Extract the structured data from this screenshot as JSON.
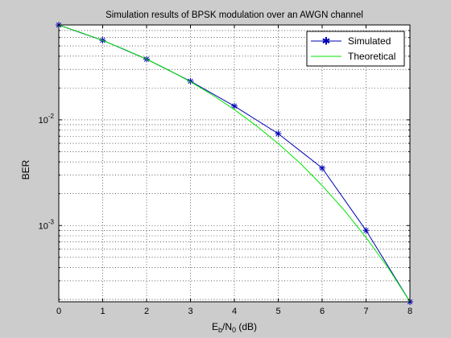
{
  "chart_data": {
    "type": "line",
    "title": "Simulation results of BPSK modulation over an AWGN channel",
    "xlabel": "E_b/N_0 (dB)",
    "ylabel": "BER",
    "yscale": "log",
    "xlim": [
      0,
      8
    ],
    "ylim": [
      0.00019,
      0.079
    ],
    "xticks": [
      0,
      1,
      2,
      3,
      4,
      5,
      6,
      7,
      8
    ],
    "yticks": [
      {
        "value": 0.01,
        "base": "10",
        "exp": "-2"
      },
      {
        "value": 0.001,
        "base": "10",
        "exp": "-3"
      }
    ],
    "grid": true,
    "legend": "top-right",
    "x": [
      0,
      1,
      2,
      3,
      4,
      5,
      6,
      7,
      8
    ],
    "series": [
      {
        "name": "Simulated",
        "color": "#0000b4",
        "marker": "star",
        "values": [
          0.0788,
          0.0565,
          0.0375,
          0.0232,
          0.0135,
          0.0074,
          0.0035,
          0.0009,
          0.00019
        ]
      },
      {
        "name": "Theoretical",
        "color": "#00e600",
        "marker": "none",
        "x": [
          0,
          0.5,
          1,
          1.5,
          2,
          2.5,
          3,
          3.5,
          4,
          4.5,
          5,
          5.5,
          6,
          6.5,
          7,
          7.5,
          8
        ],
        "values": [
          0.0786,
          0.0671,
          0.0563,
          0.0464,
          0.0375,
          0.0296,
          0.0229,
          0.0172,
          0.0125,
          0.00878,
          0.00595,
          0.00388,
          0.00239,
          0.0014,
          0.00077,
          0.0004,
          0.00019
        ]
      }
    ]
  }
}
